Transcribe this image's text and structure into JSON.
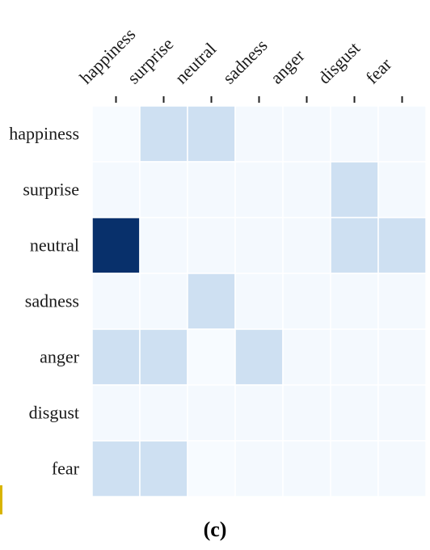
{
  "chart_data": {
    "type": "heatmap",
    "x_categories": [
      "happiness",
      "surprise",
      "neutral",
      "sadness",
      "anger",
      "disgust",
      "fear"
    ],
    "y_categories": [
      "happiness",
      "surprise",
      "neutral",
      "sadness",
      "anger",
      "disgust",
      "fear"
    ],
    "values": [
      [
        0.0,
        0.15,
        0.15,
        0.01,
        0.01,
        0.01,
        0.01
      ],
      [
        0.01,
        0.01,
        0.01,
        0.01,
        0.01,
        0.15,
        0.01
      ],
      [
        1.0,
        0.01,
        0.01,
        0.01,
        0.01,
        0.15,
        0.15
      ],
      [
        0.01,
        0.01,
        0.15,
        0.01,
        0.01,
        0.01,
        0.01
      ],
      [
        0.15,
        0.15,
        0.0,
        0.15,
        0.01,
        0.01,
        0.01
      ],
      [
        0.01,
        0.01,
        0.01,
        0.01,
        0.01,
        0.01,
        0.01
      ],
      [
        0.15,
        0.15,
        0.0,
        0.01,
        0.01,
        0.01,
        0.01
      ]
    ],
    "colormap": "Blues",
    "x_tick_position": "top",
    "grid": true
  },
  "caption": "(c)"
}
